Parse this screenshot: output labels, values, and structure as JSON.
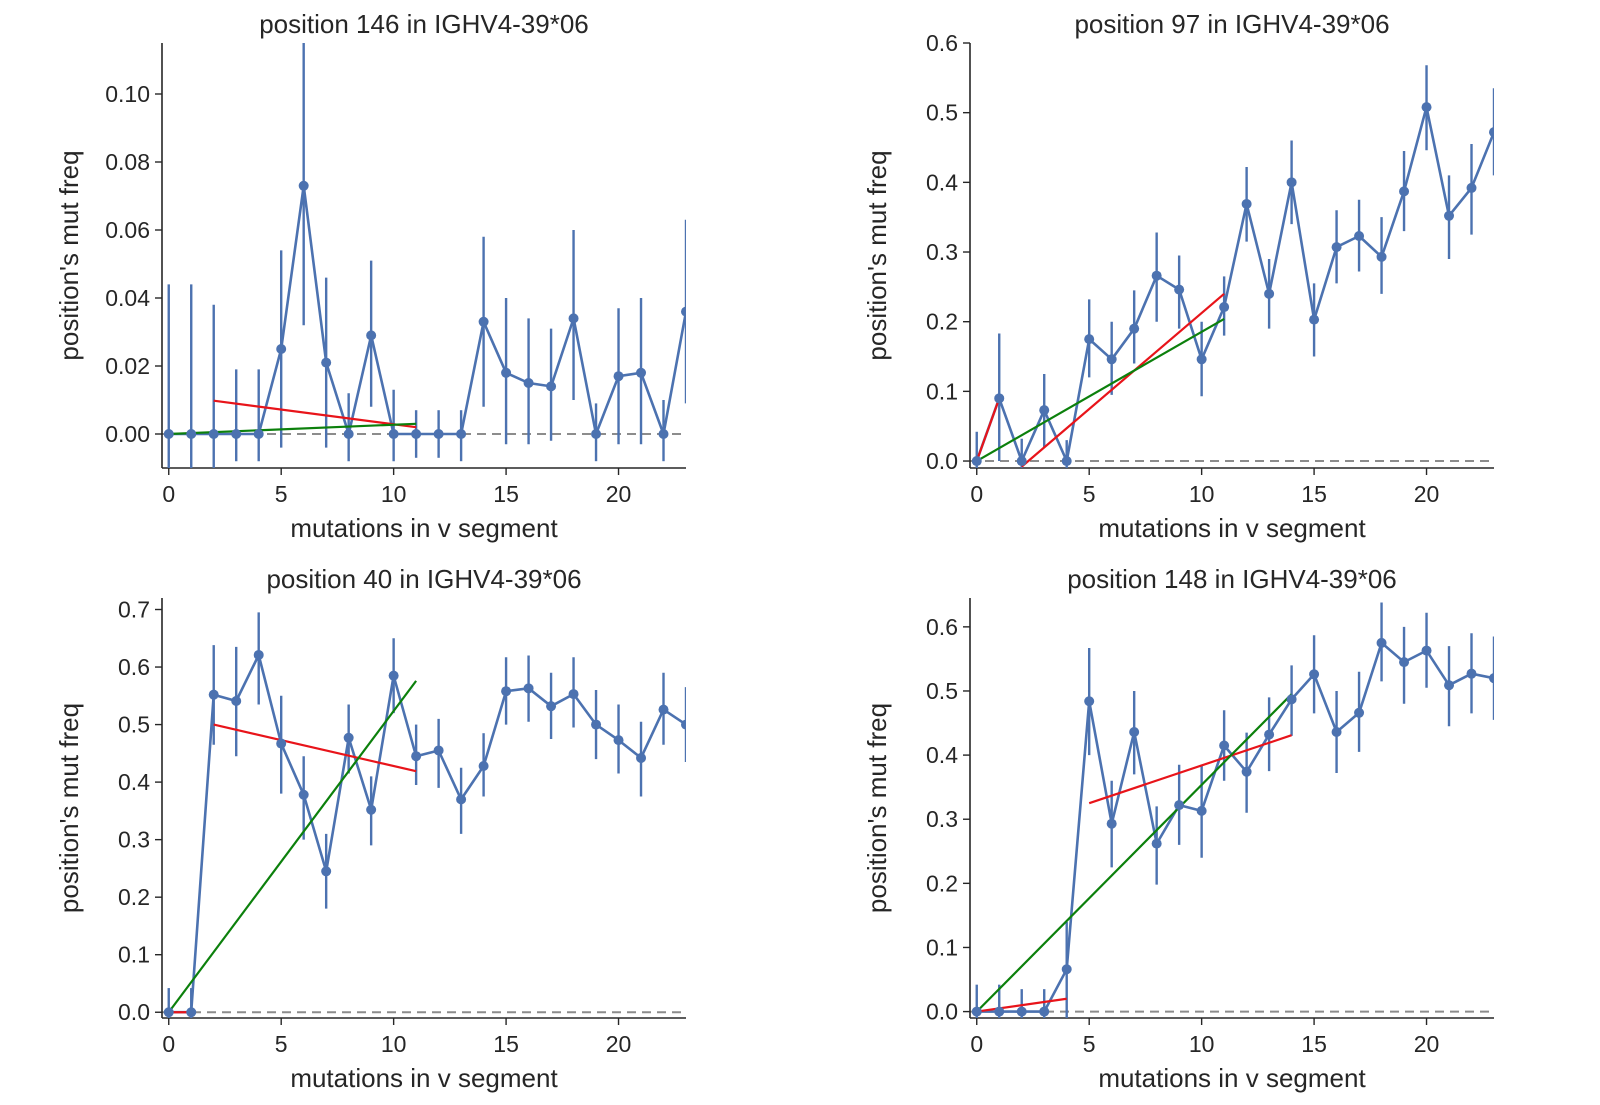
{
  "figure_title": "",
  "chart_data": [
    {
      "type": "line",
      "title": "position 146 in IGHV4-39*06",
      "xlabel": "mutations in v segment",
      "ylabel": "position's mut freq",
      "xlim": [
        -0.3,
        23
      ],
      "ylim": [
        -0.01,
        0.115
      ],
      "xticks": [
        0,
        5,
        10,
        15,
        20
      ],
      "yticks": [
        0.0,
        0.02,
        0.04,
        0.06,
        0.08,
        0.1
      ],
      "ytick_labels": [
        "0.00",
        "0.02",
        "0.04",
        "0.06",
        "0.08",
        "0.10"
      ],
      "zero_line": 0,
      "x": [
        0,
        1,
        2,
        3,
        4,
        5,
        6,
        7,
        8,
        9,
        10,
        11,
        12,
        13,
        14,
        15,
        16,
        17,
        18,
        19,
        20,
        21,
        22,
        23
      ],
      "y": [
        0,
        0,
        0,
        0,
        0,
        0.025,
        0.073,
        0.021,
        0,
        0.029,
        0,
        0,
        0,
        0,
        0.033,
        0.018,
        0.015,
        0.014,
        0.034,
        0,
        0.017,
        0.018,
        0,
        0.036
      ],
      "err_low": [
        -0.01,
        -0.01,
        -0.01,
        -0.008,
        -0.008,
        -0.004,
        0.032,
        -0.004,
        -0.008,
        0.008,
        -0.008,
        -0.007,
        -0.007,
        -0.008,
        0.008,
        -0.003,
        -0.003,
        -0.002,
        0.01,
        -0.008,
        -0.003,
        -0.003,
        -0.008,
        0.009
      ],
      "err_high": [
        0.044,
        0.044,
        0.038,
        0.019,
        0.019,
        0.054,
        0.115,
        0.046,
        0.012,
        0.051,
        0.013,
        0.007,
        0.007,
        0.007,
        0.058,
        0.04,
        0.034,
        0.031,
        0.06,
        0.009,
        0.037,
        0.04,
        0.01,
        0.063
      ],
      "fits": [
        {
          "name": "red fit",
          "color": "#e8141a",
          "x": [
            2,
            11
          ],
          "y": [
            0.0098,
            0.002
          ]
        },
        {
          "name": "green fit",
          "color": "#0c800c",
          "x": [
            0,
            11
          ],
          "y": [
            0.0,
            0.003
          ]
        }
      ]
    },
    {
      "type": "line",
      "title": "position 97 in IGHV4-39*06",
      "xlabel": "mutations in v segment",
      "ylabel": "position's mut freq",
      "xlim": [
        -0.3,
        23
      ],
      "ylim": [
        -0.01,
        0.6
      ],
      "xticks": [
        0,
        5,
        10,
        15,
        20
      ],
      "yticks": [
        0.0,
        0.1,
        0.2,
        0.3,
        0.4,
        0.5,
        0.6
      ],
      "ytick_labels": [
        "0.0",
        "0.1",
        "0.2",
        "0.3",
        "0.4",
        "0.5",
        "0.6"
      ],
      "zero_line": 0,
      "x": [
        0,
        1,
        2,
        3,
        4,
        5,
        6,
        7,
        8,
        9,
        10,
        11,
        12,
        13,
        14,
        15,
        16,
        17,
        18,
        19,
        20,
        21,
        22,
        23
      ],
      "y": [
        0,
        0.09,
        0,
        0.073,
        0,
        0.175,
        0.146,
        0.19,
        0.266,
        0.246,
        0.146,
        0.221,
        0.369,
        0.24,
        0.4,
        0.203,
        0.307,
        0.323,
        0.293,
        0.387,
        0.508,
        0.352,
        0.392,
        0.472
      ],
      "err_low": [
        -0.01,
        0.0,
        -0.01,
        0.02,
        -0.01,
        0.12,
        0.095,
        0.14,
        0.2,
        0.19,
        0.093,
        0.18,
        0.315,
        0.19,
        0.34,
        0.15,
        0.255,
        0.272,
        0.24,
        0.33,
        0.446,
        0.29,
        0.325,
        0.41
      ],
      "err_high": [
        0.042,
        0.183,
        0.032,
        0.125,
        0.03,
        0.232,
        0.2,
        0.245,
        0.328,
        0.295,
        0.2,
        0.265,
        0.422,
        0.29,
        0.46,
        0.255,
        0.36,
        0.375,
        0.35,
        0.445,
        0.568,
        0.41,
        0.455,
        0.535
      ],
      "fits": [
        {
          "name": "red fit a",
          "color": "#e8141a",
          "x": [
            0,
            1
          ],
          "y": [
            0.0,
            0.09
          ]
        },
        {
          "name": "red fit b",
          "color": "#e8141a",
          "x": [
            2,
            11
          ],
          "y": [
            -0.008,
            0.24
          ]
        },
        {
          "name": "green fit",
          "color": "#0c800c",
          "x": [
            0,
            11
          ],
          "y": [
            0.0,
            0.204
          ]
        }
      ]
    },
    {
      "type": "line",
      "title": "position 40 in IGHV4-39*06",
      "xlabel": "mutations in v segment",
      "ylabel": "position's mut freq",
      "xlim": [
        -0.3,
        23
      ],
      "ylim": [
        -0.01,
        0.72
      ],
      "xticks": [
        0,
        5,
        10,
        15,
        20
      ],
      "yticks": [
        0.0,
        0.1,
        0.2,
        0.3,
        0.4,
        0.5,
        0.6,
        0.7
      ],
      "ytick_labels": [
        "0.0",
        "0.1",
        "0.2",
        "0.3",
        "0.4",
        "0.5",
        "0.6",
        "0.7"
      ],
      "zero_line": 0,
      "x": [
        0,
        1,
        2,
        3,
        4,
        5,
        6,
        7,
        8,
        9,
        10,
        11,
        12,
        13,
        14,
        15,
        16,
        17,
        18,
        19,
        20,
        21,
        22,
        23
      ],
      "y": [
        0,
        0,
        0.552,
        0.541,
        0.621,
        0.467,
        0.378,
        0.245,
        0.477,
        0.352,
        0.585,
        0.445,
        0.455,
        0.37,
        0.428,
        0.558,
        0.563,
        0.532,
        0.553,
        0.5,
        0.473,
        0.442,
        0.526,
        0.5
      ],
      "err_low": [
        -0.01,
        -0.01,
        0.465,
        0.445,
        0.535,
        0.38,
        0.3,
        0.18,
        0.415,
        0.29,
        0.52,
        0.395,
        0.39,
        0.31,
        0.375,
        0.5,
        0.505,
        0.475,
        0.495,
        0.44,
        0.415,
        0.375,
        0.465,
        0.435
      ],
      "err_high": [
        0.042,
        0.042,
        0.638,
        0.635,
        0.695,
        0.55,
        0.445,
        0.31,
        0.535,
        0.41,
        0.65,
        0.5,
        0.51,
        0.425,
        0.485,
        0.617,
        0.62,
        0.59,
        0.617,
        0.56,
        0.535,
        0.505,
        0.59,
        0.565
      ],
      "fits": [
        {
          "name": "red fit a",
          "color": "#e8141a",
          "x": [
            0,
            1
          ],
          "y": [
            0.0,
            0.0
          ]
        },
        {
          "name": "red fit b",
          "color": "#e8141a",
          "x": [
            2,
            11
          ],
          "y": [
            0.5,
            0.419
          ]
        },
        {
          "name": "green fit",
          "color": "#0c800c",
          "x": [
            0,
            11
          ],
          "y": [
            0.0,
            0.576
          ]
        }
      ]
    },
    {
      "type": "line",
      "title": "position 148 in IGHV4-39*06",
      "xlabel": "mutations in v segment",
      "ylabel": "position's mut freq",
      "xlim": [
        -0.3,
        23
      ],
      "ylim": [
        -0.01,
        0.645
      ],
      "xticks": [
        0,
        5,
        10,
        15,
        20
      ],
      "yticks": [
        0.0,
        0.1,
        0.2,
        0.3,
        0.4,
        0.5,
        0.6
      ],
      "ytick_labels": [
        "0.0",
        "0.1",
        "0.2",
        "0.3",
        "0.4",
        "0.5",
        "0.6"
      ],
      "zero_line": 0,
      "x": [
        0,
        1,
        2,
        3,
        4,
        5,
        6,
        7,
        8,
        9,
        10,
        11,
        12,
        13,
        14,
        15,
        16,
        17,
        18,
        19,
        20,
        21,
        22,
        23
      ],
      "y": [
        0,
        0,
        0,
        0,
        0.066,
        0.484,
        0.293,
        0.436,
        0.262,
        0.322,
        0.313,
        0.415,
        0.374,
        0.432,
        0.487,
        0.526,
        0.436,
        0.466,
        0.575,
        0.545,
        0.563,
        0.509,
        0.527,
        0.52
      ],
      "err_low": [
        -0.01,
        -0.01,
        -0.01,
        -0.01,
        -0.01,
        0.4,
        0.225,
        0.37,
        0.198,
        0.26,
        0.24,
        0.36,
        0.31,
        0.375,
        0.43,
        0.465,
        0.372,
        0.405,
        0.515,
        0.48,
        0.505,
        0.445,
        0.465,
        0.455
      ],
      "err_high": [
        0.042,
        0.042,
        0.035,
        0.035,
        0.14,
        0.567,
        0.36,
        0.5,
        0.32,
        0.385,
        0.385,
        0.47,
        0.435,
        0.49,
        0.54,
        0.587,
        0.5,
        0.53,
        0.638,
        0.6,
        0.622,
        0.57,
        0.59,
        0.585
      ],
      "fits": [
        {
          "name": "red fit a",
          "color": "#e8141a",
          "x": [
            0,
            4
          ],
          "y": [
            0.0,
            0.02
          ]
        },
        {
          "name": "red fit b",
          "color": "#e8141a",
          "x": [
            5,
            14
          ],
          "y": [
            0.325,
            0.431
          ]
        },
        {
          "name": "green fit",
          "color": "#0c800c",
          "x": [
            0,
            14
          ],
          "y": [
            0.0,
            0.495
          ]
        }
      ]
    }
  ]
}
